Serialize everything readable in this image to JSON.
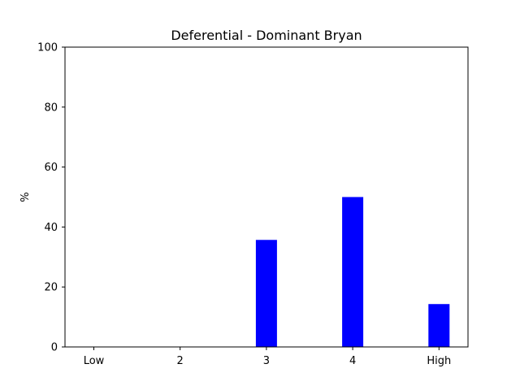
{
  "chart_data": {
    "type": "bar",
    "title": "Deferential - Dominant Bryan",
    "xlabel": "",
    "ylabel": "%",
    "categories": [
      "Low",
      "2",
      "3",
      "4",
      "High"
    ],
    "values": [
      0,
      0,
      35.7,
      50,
      14.3
    ],
    "ylim": [
      0,
      100
    ],
    "yticks": [
      0,
      20,
      40,
      60,
      80,
      100
    ],
    "bar_color": "#0000ff",
    "grid": false,
    "legend": "none"
  }
}
